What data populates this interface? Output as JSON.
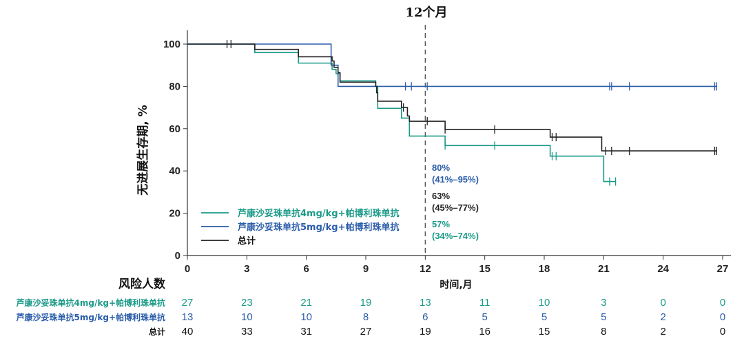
{
  "chart_data": {
    "type": "line",
    "subtype": "kaplan-meier",
    "title": "12个月",
    "xlabel": "时间,月",
    "ylabel": "无进展生存期, %",
    "xlim": [
      0,
      27
    ],
    "ylim": [
      0,
      100
    ],
    "xticks": [
      0,
      3,
      6,
      9,
      12,
      15,
      18,
      21,
      24,
      27
    ],
    "yticks": [
      0,
      20,
      40,
      60,
      80,
      100
    ],
    "reference_line_x": 12,
    "legend_position": "bottom-left",
    "series": [
      {
        "name": "芦康沙妥珠单抗4mg/kg+帕博利珠单抗",
        "color": "#1a9a88",
        "steps": [
          [
            0,
            100
          ],
          [
            3.4,
            96
          ],
          [
            5.6,
            91
          ],
          [
            7.3,
            88
          ],
          [
            7.5,
            86
          ],
          [
            7.7,
            82.6
          ],
          [
            9.5,
            80
          ],
          [
            9.6,
            69.6
          ],
          [
            10.8,
            65
          ],
          [
            11.2,
            56.5
          ],
          [
            13.0,
            52
          ],
          [
            18.3,
            47
          ],
          [
            21.0,
            35
          ],
          [
            21.6,
            35
          ]
        ],
        "censored": [
          13.0,
          15.5,
          18.4,
          18.6,
          21.3,
          21.6
        ],
        "annotation": {
          "value": "57%",
          "ci": "(34%–74%)"
        }
      },
      {
        "name": "芦康沙妥珠单抗5mg/kg+帕博利珠单抗",
        "color": "#2a5caa",
        "steps": [
          [
            0,
            100
          ],
          [
            7.25,
            90
          ],
          [
            7.6,
            80
          ],
          [
            26.7,
            80
          ]
        ],
        "censored": [
          11.0,
          11.3,
          12.1,
          21.3,
          21.4,
          22.3,
          26.6,
          26.7
        ],
        "annotation": {
          "value": "80%",
          "ci": "(41%–95%)"
        }
      },
      {
        "name": "总计",
        "color": "#222222",
        "steps": [
          [
            0,
            100
          ],
          [
            3.4,
            97.5
          ],
          [
            5.6,
            94
          ],
          [
            7.3,
            92
          ],
          [
            7.4,
            89
          ],
          [
            7.6,
            86.5
          ],
          [
            7.7,
            82
          ],
          [
            9.5,
            80
          ],
          [
            9.55,
            77
          ],
          [
            9.6,
            73
          ],
          [
            10.8,
            70
          ],
          [
            11.1,
            66
          ],
          [
            11.2,
            63.5
          ],
          [
            13.0,
            59.6
          ],
          [
            18.3,
            56
          ],
          [
            20.9,
            49.5
          ],
          [
            26.7,
            49.5
          ]
        ],
        "censored": [
          2.0,
          2.2,
          10.9,
          12.1,
          13.0,
          15.5,
          18.4,
          18.6,
          21.1,
          21.4,
          22.3,
          26.6,
          26.7
        ],
        "annotation": {
          "value": "63%",
          "ci": "(45%–77%)"
        }
      }
    ],
    "risk_table": {
      "title": "风险人数",
      "rows": [
        {
          "label": "芦康沙妥珠单抗4mg/kg+帕博利珠单抗",
          "values": [
            27,
            23,
            21,
            19,
            13,
            11,
            10,
            3,
            0,
            0
          ]
        },
        {
          "label": "芦康沙妥珠单抗5mg/kg+帕博利珠单抗",
          "values": [
            13,
            10,
            10,
            8,
            6,
            5,
            5,
            5,
            2,
            0
          ]
        },
        {
          "label": "总计",
          "values": [
            40,
            33,
            31,
            27,
            19,
            16,
            15,
            8,
            2,
            0
          ]
        }
      ]
    }
  }
}
